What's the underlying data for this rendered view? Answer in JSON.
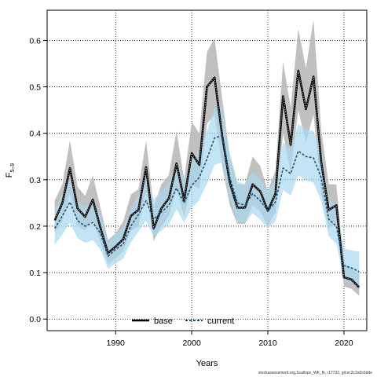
{
  "chart_data": {
    "type": "line",
    "xlabel": "Years",
    "ylabel_main": "F",
    "ylabel_sub": "5–9",
    "xlim": [
      1981,
      2023
    ],
    "ylim": [
      -0.025,
      0.665
    ],
    "x_ticks": [
      1990,
      2000,
      2010,
      2020
    ],
    "y_ticks": [
      "0.0",
      "0.1",
      "0.2",
      "0.3",
      "0.4",
      "0.5",
      "0.6"
    ],
    "grid": true,
    "legend_position": "bottom-center",
    "colors": {
      "base_band": "#bdbdbd",
      "base_line": "#000000",
      "current_band": "#a8d8f0",
      "current_line": "#1f4e79"
    },
    "x": [
      1982,
      1983,
      1984,
      1985,
      1986,
      1987,
      1988,
      1989,
      1990,
      1991,
      1992,
      1993,
      1994,
      1995,
      1996,
      1997,
      1998,
      1999,
      2000,
      2001,
      2002,
      2003,
      2004,
      2005,
      2006,
      2007,
      2008,
      2009,
      2010,
      2011,
      2012,
      2013,
      2014,
      2015,
      2016,
      2017,
      2018,
      2019,
      2020,
      2021,
      2022
    ],
    "series": [
      {
        "name": "base",
        "values": [
          0.212,
          0.25,
          0.325,
          0.238,
          0.22,
          0.257,
          0.197,
          0.142,
          0.156,
          0.172,
          0.222,
          0.235,
          0.327,
          0.195,
          0.238,
          0.26,
          0.335,
          0.256,
          0.357,
          0.332,
          0.5,
          0.52,
          0.395,
          0.294,
          0.24,
          0.24,
          0.29,
          0.275,
          0.233,
          0.27,
          0.48,
          0.375,
          0.535,
          0.452,
          0.522,
          0.34,
          0.235,
          0.245,
          0.09,
          0.085,
          0.068
        ],
        "lower": [
          0.185,
          0.21,
          0.27,
          0.2,
          0.19,
          0.215,
          0.165,
          0.118,
          0.13,
          0.145,
          0.19,
          0.2,
          0.275,
          0.168,
          0.2,
          0.222,
          0.28,
          0.22,
          0.29,
          0.28,
          0.42,
          0.44,
          0.33,
          0.245,
          0.205,
          0.205,
          0.245,
          0.232,
          0.2,
          0.23,
          0.4,
          0.315,
          0.45,
          0.38,
          0.44,
          0.27,
          0.195,
          0.205,
          0.07,
          0.065,
          0.05
        ],
        "upper": [
          0.255,
          0.29,
          0.385,
          0.285,
          0.265,
          0.31,
          0.24,
          0.17,
          0.185,
          0.21,
          0.268,
          0.28,
          0.385,
          0.24,
          0.29,
          0.31,
          0.405,
          0.3,
          0.425,
          0.4,
          0.575,
          0.605,
          0.475,
          0.35,
          0.29,
          0.29,
          0.35,
          0.33,
          0.275,
          0.32,
          0.555,
          0.455,
          0.625,
          0.54,
          0.645,
          0.41,
          0.29,
          0.29,
          0.12,
          0.11,
          0.095
        ]
      },
      {
        "name": "current",
        "values": [
          0.195,
          0.222,
          0.252,
          0.212,
          0.2,
          0.208,
          0.185,
          0.135,
          0.15,
          0.162,
          0.2,
          0.225,
          0.255,
          0.215,
          0.23,
          0.245,
          0.282,
          0.25,
          0.288,
          0.305,
          0.345,
          0.39,
          0.395,
          0.305,
          0.25,
          0.245,
          0.27,
          0.255,
          0.233,
          0.252,
          0.325,
          0.313,
          0.362,
          0.35,
          0.347,
          0.305,
          0.215,
          0.2,
          0.115,
          0.11,
          0.102
        ],
        "lower": [
          0.16,
          0.182,
          0.208,
          0.174,
          0.164,
          0.17,
          0.15,
          0.108,
          0.12,
          0.13,
          0.165,
          0.188,
          0.212,
          0.178,
          0.19,
          0.204,
          0.236,
          0.208,
          0.24,
          0.256,
          0.292,
          0.332,
          0.338,
          0.258,
          0.21,
          0.206,
          0.228,
          0.214,
          0.195,
          0.21,
          0.278,
          0.266,
          0.31,
          0.298,
          0.294,
          0.255,
          0.178,
          0.162,
          0.083,
          0.08,
          0.072
        ],
        "upper": [
          0.235,
          0.268,
          0.3,
          0.255,
          0.24,
          0.25,
          0.225,
          0.165,
          0.185,
          0.198,
          0.24,
          0.268,
          0.305,
          0.258,
          0.275,
          0.292,
          0.335,
          0.298,
          0.342,
          0.36,
          0.405,
          0.455,
          0.46,
          0.358,
          0.296,
          0.29,
          0.318,
          0.302,
          0.276,
          0.3,
          0.38,
          0.366,
          0.42,
          0.408,
          0.405,
          0.36,
          0.258,
          0.245,
          0.152,
          0.148,
          0.145
        ]
      }
    ]
  },
  "footer": "stockassessment.org,Scallops_WK_fit, r17732, git:ec2c2a0c6dde"
}
